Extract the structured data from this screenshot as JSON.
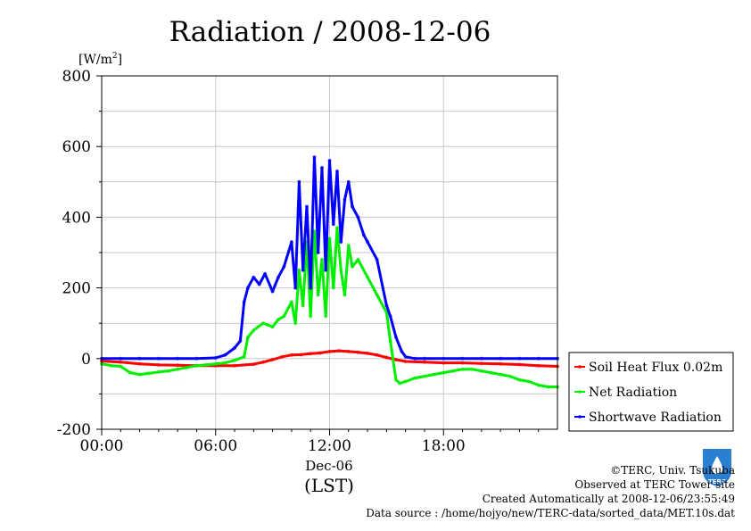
{
  "chart_data": {
    "type": "line",
    "title": "Radiation / 2008-12-06",
    "ylabel": "[W/m2]",
    "ylabel_base": "[W/m",
    "ylabel_sup": "2",
    "ylabel_close": "]",
    "ylim": [
      -200,
      800
    ],
    "yticks": [
      "800",
      "600",
      "400",
      "200",
      "0",
      "-200"
    ],
    "ytick_values": [
      800,
      600,
      400,
      200,
      0,
      -200
    ],
    "xlim": [
      0,
      24
    ],
    "xticks": [
      "00:00",
      "06:00",
      "12:00",
      "18:00"
    ],
    "xtick_values": [
      0,
      6,
      12,
      18
    ],
    "xlabel_date": "Dec-06",
    "xlabel": "(LST)",
    "grid": true,
    "legend_position": "right-bottom-outside",
    "series": [
      {
        "name": "Soil Heat Flux 0.02m",
        "color": "#ff0000",
        "x": [
          0,
          1,
          2,
          3,
          4,
          5,
          6,
          7,
          8,
          8.5,
          9,
          9.5,
          10,
          10.5,
          11,
          11.5,
          12,
          12.5,
          13,
          13.5,
          14,
          14.5,
          15,
          15.5,
          16,
          17,
          18,
          19,
          20,
          21,
          22,
          23,
          24
        ],
        "values": [
          -7,
          -10,
          -15,
          -18,
          -19,
          -20,
          -20,
          -20,
          -16,
          -10,
          -3,
          5,
          10,
          11,
          14,
          16,
          20,
          22,
          20,
          18,
          15,
          10,
          3,
          -3,
          -8,
          -10,
          -12,
          -12,
          -14,
          -15,
          -17,
          -20,
          -22
        ]
      },
      {
        "name": "Net Radiation",
        "color": "#00ee00",
        "x": [
          0,
          0.5,
          1,
          1.5,
          2,
          2.5,
          3,
          3.5,
          4,
          4.5,
          5,
          5.5,
          6,
          6.5,
          7,
          7.5,
          7.7,
          8,
          8.5,
          9,
          9.3,
          9.6,
          10,
          10.2,
          10.4,
          10.6,
          10.8,
          11,
          11.2,
          11.4,
          11.6,
          11.8,
          12,
          12.2,
          12.4,
          12.6,
          12.8,
          13,
          13.2,
          13.5,
          14,
          14.5,
          15,
          15.2,
          15.5,
          15.7,
          16,
          16.5,
          17,
          17.5,
          18,
          18.5,
          19,
          19.5,
          20,
          20.5,
          21,
          21.5,
          22,
          22.5,
          23,
          23.5,
          24
        ],
        "values": [
          -15,
          -20,
          -22,
          -40,
          -45,
          -42,
          -38,
          -35,
          -30,
          -25,
          -20,
          -18,
          -15,
          -12,
          -5,
          5,
          60,
          80,
          100,
          90,
          110,
          120,
          160,
          100,
          250,
          150,
          330,
          120,
          360,
          180,
          280,
          120,
          340,
          200,
          370,
          250,
          180,
          320,
          260,
          280,
          230,
          180,
          130,
          50,
          -60,
          -70,
          -65,
          -55,
          -50,
          -45,
          -40,
          -35,
          -30,
          -30,
          -35,
          -40,
          -45,
          -50,
          -60,
          -65,
          -75,
          -80,
          -80
        ]
      },
      {
        "name": "Shortwave Radiation",
        "color": "#0000ff",
        "x": [
          0,
          1,
          2,
          3,
          4,
          5,
          6,
          6.5,
          7,
          7.3,
          7.5,
          7.7,
          8,
          8.3,
          8.6,
          9,
          9.3,
          9.6,
          10,
          10.2,
          10.4,
          10.6,
          10.8,
          11,
          11.2,
          11.4,
          11.6,
          11.8,
          12,
          12.2,
          12.4,
          12.6,
          12.8,
          13,
          13.2,
          13.5,
          13.8,
          14,
          14.5,
          15,
          15.2,
          15.5,
          15.8,
          16,
          16.5,
          17,
          18,
          19,
          20,
          21,
          22,
          23,
          24
        ],
        "values": [
          0,
          0,
          0,
          0,
          0,
          0,
          2,
          10,
          30,
          50,
          160,
          200,
          230,
          210,
          240,
          190,
          230,
          260,
          330,
          200,
          500,
          250,
          430,
          200,
          570,
          300,
          540,
          250,
          560,
          380,
          530,
          330,
          450,
          500,
          430,
          400,
          350,
          330,
          280,
          150,
          120,
          60,
          20,
          5,
          0,
          0,
          0,
          0,
          0,
          0,
          0,
          0,
          0
        ]
      }
    ]
  },
  "logo": {
    "text": "TERC"
  },
  "footer": {
    "line1": "©TERC, Univ. Tsukuba",
    "line2": "Observed at TERC Tower site",
    "line3": "Created Automatically at 2008-12-06/23:55:49",
    "line4": "Data source : /home/hojyo/new/TERC-data/sorted_data/MET.10s.dat"
  },
  "colors": {
    "grid": "#c8c8c8",
    "axis": "#000000"
  }
}
